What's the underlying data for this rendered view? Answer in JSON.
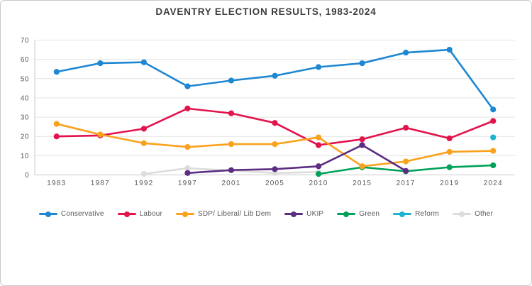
{
  "title": "DAVENTRY ELECTION RESULTS, 1983-2024",
  "chart_data": {
    "type": "line",
    "title": "DAVENTRY ELECTION RESULTS, 1983-2024",
    "xlabel": "",
    "ylabel": "",
    "categories": [
      "1983",
      "1987",
      "1992",
      "1997",
      "2001",
      "2005",
      "2010",
      "2015",
      "2017",
      "2019",
      "2024"
    ],
    "ylim": [
      0,
      70
    ],
    "yticks": [
      0,
      10,
      20,
      30,
      40,
      50,
      60,
      70
    ],
    "grid": true,
    "legend_position": "bottom",
    "series": [
      {
        "name": "Conservative",
        "color": "#1e87d2",
        "values": [
          53.5,
          58,
          58.5,
          46,
          49,
          51.5,
          56,
          58,
          63.5,
          65,
          34
        ]
      },
      {
        "name": "Labour",
        "color": "#e3134c",
        "values": [
          20,
          20.5,
          24,
          34.5,
          32,
          27,
          15.5,
          18.5,
          24.5,
          19,
          28
        ]
      },
      {
        "name": "SDP/ Liberal/ Lib Dem",
        "color": "#faa21c",
        "values": [
          26.5,
          21,
          16.5,
          14.5,
          16,
          16,
          19.5,
          4.5,
          7,
          12,
          12.5
        ]
      },
      {
        "name": "UKIP",
        "color": "#5c2d83",
        "values": [
          null,
          null,
          null,
          1,
          2.5,
          3,
          4.5,
          15.5,
          2.1,
          null,
          null
        ]
      },
      {
        "name": "Green",
        "color": "#00a159",
        "values": [
          null,
          null,
          null,
          null,
          null,
          null,
          0.5,
          4,
          1.9,
          4,
          5
        ]
      },
      {
        "name": "Reform",
        "color": "#1cb4cf",
        "values": [
          null,
          null,
          null,
          null,
          null,
          null,
          null,
          null,
          null,
          null,
          19.5
        ]
      },
      {
        "name": "Other",
        "color": "#dcdcdc",
        "values": [
          null,
          null,
          0.5,
          3.5,
          null,
          1,
          1.5,
          null,
          null,
          null,
          null
        ]
      }
    ],
    "draw_order": [
      "Other",
      "Green",
      "Labour",
      "SDP/ Liberal/ Lib Dem",
      "UKIP",
      "Conservative",
      "Reform"
    ]
  }
}
